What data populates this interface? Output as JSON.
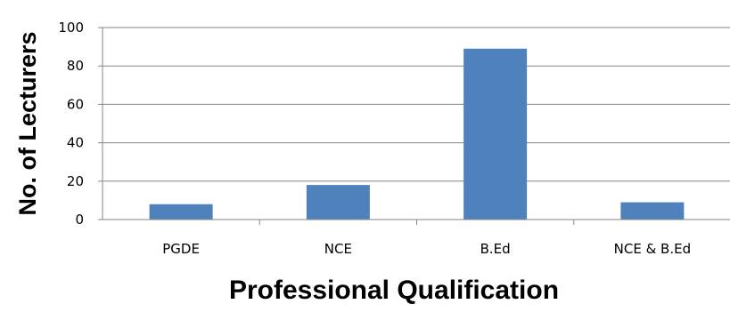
{
  "chart_data": {
    "type": "bar",
    "title": "",
    "xlabel": "Professional Qualification",
    "ylabel": "No. of Lecturers",
    "categories": [
      "PGDE",
      "NCE",
      "B.Ed",
      "NCE & B.Ed"
    ],
    "values": [
      8,
      18,
      89,
      9
    ],
    "ylim": [
      0,
      100
    ],
    "yticks": [
      "0",
      "20",
      "40",
      "60",
      "80",
      "100"
    ],
    "grid": true,
    "legend": false,
    "bar_color": "#4f81bd",
    "grid_color": "#868686"
  }
}
